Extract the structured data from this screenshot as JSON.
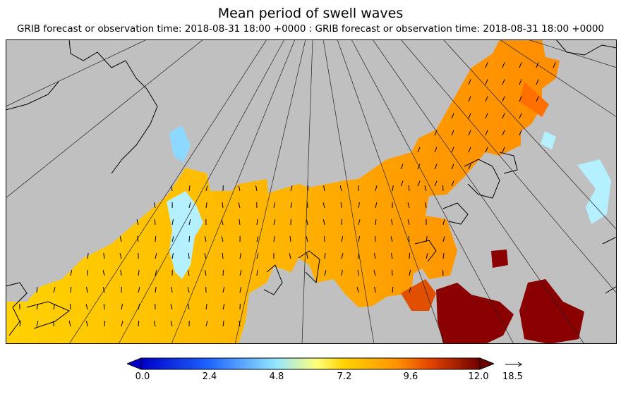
{
  "header": {
    "title": "Mean period of swell waves",
    "subtitle": "GRIB forecast or observation time: 2018-08-31 18:00 +0000 : GRIB forecast or observation time: 2018-08-31 18:00 +0000"
  },
  "colors": {
    "land": "#c0c0c0",
    "coast": "#000000",
    "scale": [
      "#0000c8",
      "#1e50ff",
      "#64b4ff",
      "#b4f0ff",
      "#ffff64",
      "#ffc800",
      "#ff9600",
      "#e64600",
      "#a00000",
      "#6e0000"
    ]
  },
  "colorbar": {
    "min": 0.0,
    "max": 12.0,
    "tick_labels": [
      "0.0",
      "2.4",
      "4.8",
      "7.2",
      "9.6",
      "12.0"
    ]
  },
  "arrow_legend": {
    "value": "18.5"
  }
}
